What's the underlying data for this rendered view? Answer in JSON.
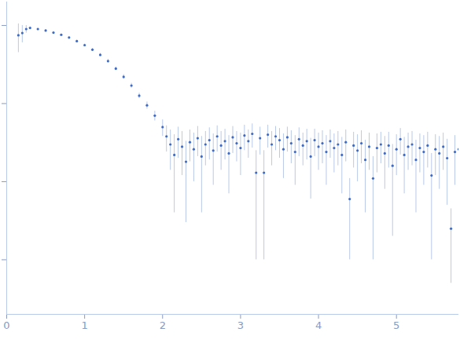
{
  "chart_data": {
    "type": "scatter",
    "color": "#3f6bc4",
    "log": "y",
    "grid": false,
    "tick_labels": "x",
    "xlim": [
      0,
      5.8
    ],
    "xticks": [
      0,
      1,
      2,
      3,
      4,
      5
    ],
    "ylim": [
      0.0002,
      2
    ],
    "yticks": [
      0.001,
      0.01,
      0.1,
      1
    ],
    "x": [
      0.15,
      0.2,
      0.25,
      0.3,
      0.4,
      0.5,
      0.6,
      0.7,
      0.8,
      0.9,
      1.0,
      1.1,
      1.2,
      1.3,
      1.4,
      1.5,
      1.6,
      1.7,
      1.8,
      1.9,
      2.0,
      2.05,
      2.1,
      2.15,
      2.2,
      2.25,
      2.3,
      2.35,
      2.4,
      2.45,
      2.5,
      2.55,
      2.6,
      2.65,
      2.7,
      2.75,
      2.8,
      2.85,
      2.9,
      2.95,
      3.0,
      3.05,
      3.1,
      3.15,
      3.2,
      3.25,
      3.3,
      3.35,
      3.4,
      3.45,
      3.5,
      3.55,
      3.6,
      3.65,
      3.7,
      3.75,
      3.8,
      3.85,
      3.9,
      3.95,
      4.0,
      4.05,
      4.1,
      4.15,
      4.2,
      4.25,
      4.3,
      4.35,
      4.4,
      4.45,
      4.5,
      4.55,
      4.6,
      4.65,
      4.7,
      4.75,
      4.8,
      4.85,
      4.9,
      4.95,
      5.0,
      5.05,
      5.1,
      5.15,
      5.2,
      5.25,
      5.3,
      5.35,
      5.4,
      5.45,
      5.5,
      5.55,
      5.6,
      5.65,
      5.7,
      5.75,
      5.8
    ],
    "values": [
      0.75,
      0.8,
      0.9,
      0.93,
      0.9,
      0.86,
      0.81,
      0.76,
      0.7,
      0.63,
      0.56,
      0.49,
      0.42,
      0.35,
      0.28,
      0.22,
      0.17,
      0.126,
      0.095,
      0.07,
      0.05,
      0.038,
      0.03,
      0.022,
      0.035,
      0.028,
      0.018,
      0.032,
      0.026,
      0.036,
      0.021,
      0.03,
      0.034,
      0.025,
      0.038,
      0.029,
      0.033,
      0.023,
      0.037,
      0.031,
      0.027,
      0.039,
      0.033,
      0.041,
      0.013,
      0.036,
      0.013,
      0.04,
      0.03,
      0.038,
      0.034,
      0.026,
      0.037,
      0.031,
      0.024,
      0.035,
      0.029,
      0.033,
      0.021,
      0.034,
      0.028,
      0.031,
      0.024,
      0.033,
      0.027,
      0.03,
      0.022,
      0.032,
      0.006,
      0.029,
      0.025,
      0.031,
      0.019,
      0.028,
      0.011,
      0.027,
      0.03,
      0.023,
      0.029,
      0.016,
      0.026,
      0.035,
      0.022,
      0.028,
      0.03,
      0.019,
      0.027,
      0.024,
      0.029,
      0.012,
      0.026,
      0.023,
      0.028,
      0.02,
      0.0025,
      0.024,
      0.026
    ],
    "errors": [
      0.3,
      0.2,
      0.1,
      0.03,
      0.02,
      0.02,
      0.02,
      0.02,
      0.02,
      0.02,
      0.02,
      0.02,
      0.02,
      0.02,
      0.015,
      0.015,
      0.012,
      0.01,
      0.01,
      0.01,
      0.012,
      0.014,
      0.016,
      0.018,
      0.015,
      0.016,
      0.015,
      0.014,
      0.016,
      0.015,
      0.017,
      0.014,
      0.015,
      0.016,
      0.014,
      0.015,
      0.014,
      0.016,
      0.014,
      0.013,
      0.015,
      0.014,
      0.013,
      0.014,
      0.012,
      0.014,
      0.012,
      0.013,
      0.014,
      0.013,
      0.014,
      0.015,
      0.013,
      0.014,
      0.015,
      0.014,
      0.013,
      0.014,
      0.015,
      0.013,
      0.014,
      0.014,
      0.015,
      0.013,
      0.014,
      0.014,
      0.015,
      0.014,
      0.005,
      0.014,
      0.015,
      0.014,
      0.015,
      0.014,
      0.01,
      0.014,
      0.013,
      0.015,
      0.014,
      0.014,
      0.014,
      0.013,
      0.015,
      0.014,
      0.014,
      0.015,
      0.014,
      0.015,
      0.014,
      0.011,
      0.014,
      0.015,
      0.014,
      0.015,
      0.002,
      0.015,
      0.014
    ]
  }
}
